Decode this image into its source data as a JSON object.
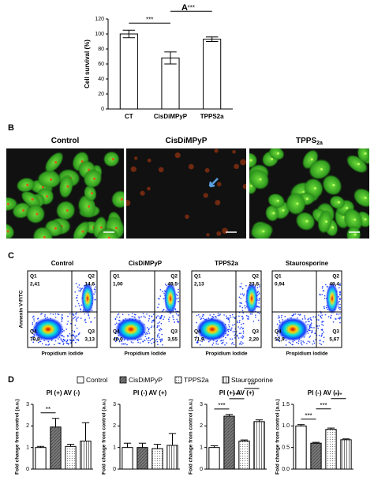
{
  "panel_labels": [
    "A",
    "B",
    "C",
    "D"
  ],
  "chart_data": [
    {
      "type": "bar",
      "ylabel": "Cell survival (%)",
      "categories": [
        "CT",
        "CisDiMPyP",
        "TPPS2a"
      ],
      "values": [
        100,
        68,
        93
      ],
      "errors": [
        5,
        8,
        3
      ],
      "ylim": [
        0,
        120
      ],
      "yticks": [
        0,
        20,
        40,
        60,
        80,
        100,
        120
      ],
      "annotations": [
        {
          "text": "***",
          "between": [
            0,
            1
          ]
        },
        {
          "text": "***",
          "between": [
            1,
            2
          ]
        }
      ]
    },
    {
      "type": "bar",
      "title": "PI (+) AV (-)",
      "ylabel": "Fold change from control (a.u.)",
      "values": [
        1.0,
        1.95,
        1.05,
        1.3
      ],
      "errors": [
        0.05,
        0.4,
        0.1,
        0.85
      ],
      "ylim": [
        0,
        3
      ],
      "yticks": [
        0,
        1,
        2,
        3
      ],
      "annotations": [
        {
          "text": "**",
          "between": [
            0,
            1
          ]
        }
      ]
    },
    {
      "type": "bar",
      "title": "PI (-) AV (+)",
      "ylabel": "Fold change from control (a.u.)",
      "values": [
        1.0,
        1.0,
        0.95,
        1.1
      ],
      "errors": [
        0.2,
        0.2,
        0.2,
        0.55
      ],
      "ylim": [
        0,
        3
      ],
      "yticks": [
        0,
        1,
        2,
        3
      ],
      "annotations": []
    },
    {
      "type": "bar",
      "title": "PI (+) AV (+)",
      "ylabel": "Fold change from control (a.u.)",
      "values": [
        1.0,
        2.45,
        1.3,
        2.2
      ],
      "errors": [
        0.08,
        0.08,
        0.05,
        0.08
      ],
      "ylim": [
        0,
        3
      ],
      "yticks": [
        0,
        1,
        2,
        3
      ],
      "annotations": [
        {
          "text": "***",
          "between": [
            0,
            1
          ]
        },
        {
          "text": "***",
          "between": [
            1,
            2
          ]
        },
        {
          "text": "***",
          "between": [
            2,
            3
          ]
        }
      ]
    },
    {
      "type": "bar",
      "title": "PI (-) AV (-)",
      "ylabel": "Fold change from control (a.u.)",
      "values": [
        1.0,
        0.6,
        0.92,
        0.68
      ],
      "errors": [
        0.03,
        0.02,
        0.03,
        0.02
      ],
      "ylim": [
        0,
        1.5
      ],
      "yticks": [
        {
          "value": 0,
          "label": "0.0"
        },
        {
          "value": 0.5,
          "label": "0.5"
        },
        {
          "value": 1,
          "label": "1.0"
        },
        {
          "value": 1.5,
          "label": "1.5"
        }
      ],
      "annotations": [
        {
          "text": "***",
          "between": [
            0,
            1
          ]
        },
        {
          "text": "***",
          "between": [
            1,
            2
          ]
        },
        {
          "text": "***",
          "between": [
            2,
            3
          ]
        }
      ]
    }
  ],
  "microscopy": {
    "titles": [
      {
        "text": "Control"
      },
      {
        "text": "CisDiMPyP"
      },
      {
        "text": "TPPS",
        "subscript": "2a"
      }
    ]
  },
  "flow_cytometry": {
    "ylabel": "Annexin V-FITC",
    "xlabel": "Propidium Iodide",
    "plots": [
      {
        "title": "Control",
        "quadrants": [
          {
            "name": "Q1",
            "value": "2,41"
          },
          {
            "name": "Q2",
            "value": "14,6"
          },
          {
            "name": "Q3",
            "value": "3,13"
          },
          {
            "name": "Q4",
            "value": "79,8"
          }
        ]
      },
      {
        "title": "CisDiMPyP",
        "quadrants": [
          {
            "name": "Q1",
            "value": "1,00"
          },
          {
            "name": "Q2",
            "value": "49,5"
          },
          {
            "name": "Q3",
            "value": "3,55"
          },
          {
            "name": "Q4",
            "value": "46,0"
          }
        ]
      },
      {
        "title": "TPPS2a",
        "quadrants": [
          {
            "name": "Q1",
            "value": "2,13"
          },
          {
            "name": "Q2",
            "value": "23,8"
          },
          {
            "name": "Q3",
            "value": "2,20"
          },
          {
            "name": "Q4",
            "value": "71,9"
          }
        ]
      },
      {
        "title": "Staurosporine",
        "quadrants": [
          {
            "name": "Q1",
            "value": "0,94"
          },
          {
            "name": "Q2",
            "value": "40,4"
          },
          {
            "name": "Q3",
            "value": "5,67"
          },
          {
            "name": "Q4",
            "value": "52,9"
          }
        ]
      }
    ]
  },
  "panel_d_legend": [
    {
      "name": "Control",
      "pattern": "open"
    },
    {
      "name": "CisDiMPyP",
      "pattern": "dark"
    },
    {
      "name": "TPPS2a",
      "pattern": "dots"
    },
    {
      "name": "Staurosporine",
      "pattern": "stripes"
    }
  ]
}
